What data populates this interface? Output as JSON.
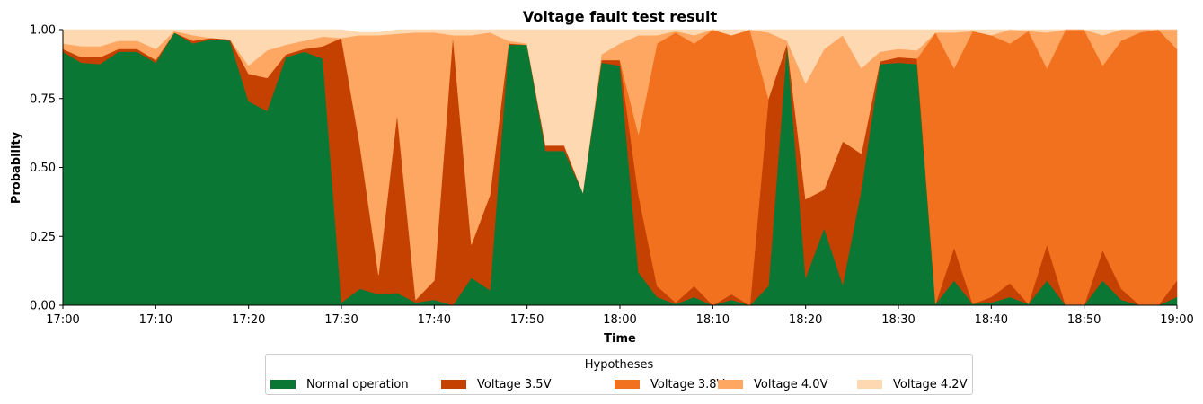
{
  "chart_data": {
    "type": "area",
    "stacked": true,
    "title": "Voltage fault test result",
    "xlabel": "Time",
    "ylabel": "Probability",
    "ylim": [
      0,
      1
    ],
    "xlim": [
      "17:00",
      "19:00"
    ],
    "grid": false,
    "x_ticks": [
      "17:00",
      "17:10",
      "17:20",
      "17:30",
      "17:40",
      "17:50",
      "18:00",
      "18:10",
      "18:20",
      "18:30",
      "18:40",
      "18:50",
      "19:00"
    ],
    "y_ticks": [
      "0.00",
      "0.25",
      "0.50",
      "0.75",
      "1.00"
    ],
    "legend": {
      "title": "Hypotheses",
      "placement": "bottom-center"
    },
    "x": [
      "17:00",
      "17:02",
      "17:04",
      "17:06",
      "17:08",
      "17:10",
      "17:12",
      "17:14",
      "17:16",
      "17:18",
      "17:20",
      "17:22",
      "17:24",
      "17:26",
      "17:28",
      "17:30",
      "17:32",
      "17:34",
      "17:36",
      "17:38",
      "17:40",
      "17:42",
      "17:44",
      "17:46",
      "17:48",
      "17:50",
      "17:52",
      "17:54",
      "17:56",
      "17:58",
      "18:00",
      "18:02",
      "18:04",
      "18:06",
      "18:08",
      "18:10",
      "18:12",
      "18:14",
      "18:16",
      "18:18",
      "18:20",
      "18:22",
      "18:24",
      "18:26",
      "18:28",
      "18:30",
      "18:32",
      "18:34",
      "18:36",
      "18:38",
      "18:40",
      "18:42",
      "18:44",
      "18:46",
      "18:48",
      "18:50",
      "18:52",
      "18:54",
      "18:56",
      "18:58",
      "19:00"
    ],
    "series": [
      {
        "name": "Normal operation",
        "color": "#0b7734",
        "values": [
          0.92,
          0.88,
          0.875,
          0.92,
          0.92,
          0.88,
          0.99,
          0.95,
          0.965,
          0.96,
          0.74,
          0.705,
          0.9,
          0.92,
          0.895,
          0.01,
          0.06,
          0.04,
          0.045,
          0.01,
          0.02,
          0.0,
          0.1,
          0.055,
          0.945,
          0.945,
          0.56,
          0.56,
          0.41,
          0.88,
          0.87,
          0.12,
          0.03,
          0.005,
          0.03,
          0.0,
          0.02,
          0.0,
          0.07,
          0.95,
          0.1,
          0.28,
          0.075,
          0.42,
          0.875,
          0.88,
          0.875,
          0.005,
          0.09,
          0.005,
          0.01,
          0.03,
          0.005,
          0.09,
          0.0,
          0.0,
          0.09,
          0.02,
          0.0,
          0.0,
          0.03
        ]
      },
      {
        "name": "Voltage 3.5V",
        "color": "#c44102",
        "values": [
          0.01,
          0.02,
          0.025,
          0.01,
          0.01,
          0.01,
          0.0,
          0.01,
          0.005,
          0.005,
          0.1,
          0.12,
          0.01,
          0.01,
          0.045,
          0.96,
          0.52,
          0.07,
          0.65,
          0.01,
          0.07,
          0.98,
          0.12,
          0.345,
          0.005,
          0.0,
          0.02,
          0.02,
          0.0,
          0.01,
          0.02,
          0.28,
          0.04,
          0.005,
          0.04,
          0.0,
          0.02,
          0.0,
          0.68,
          0.0,
          0.285,
          0.14,
          0.52,
          0.13,
          0.01,
          0.02,
          0.02,
          0.0,
          0.12,
          0.0,
          0.02,
          0.05,
          0.0,
          0.13,
          0.0,
          0.0,
          0.11,
          0.04,
          0.0,
          0.0,
          0.06
        ]
      },
      {
        "name": "Voltage 3.8V",
        "color": "#f1711e",
        "values": [
          0.0,
          0.0,
          0.0,
          0.0,
          0.0,
          0.0,
          0.0,
          0.0,
          0.0,
          0.0,
          0.0,
          0.0,
          0.0,
          0.0,
          0.0,
          0.0,
          0.0,
          0.0,
          0.0,
          0.0,
          0.0,
          0.0,
          0.0,
          0.0,
          0.0,
          0.0,
          0.0,
          0.0,
          0.0,
          0.0,
          0.0,
          0.22,
          0.88,
          0.98,
          0.88,
          1.0,
          0.94,
          1.0,
          0.0,
          0.0,
          0.0,
          0.0,
          0.0,
          0.0,
          0.0,
          0.0,
          0.0,
          0.985,
          0.65,
          0.99,
          0.95,
          0.87,
          0.99,
          0.64,
          1.0,
          1.0,
          0.67,
          0.9,
          0.99,
          1.0,
          0.84
        ]
      },
      {
        "name": "Voltage 4.0V",
        "color": "#fda762",
        "values": [
          0.02,
          0.04,
          0.04,
          0.03,
          0.03,
          0.04,
          0.005,
          0.02,
          0.0,
          0.0,
          0.03,
          0.1,
          0.035,
          0.03,
          0.035,
          0.0,
          0.4,
          0.87,
          0.29,
          0.97,
          0.9,
          0.0,
          0.76,
          0.59,
          0.01,
          0.005,
          0.0,
          0.0,
          0.0,
          0.02,
          0.06,
          0.36,
          0.03,
          0.005,
          0.03,
          0.0,
          0.0,
          0.0,
          0.24,
          0.01,
          0.42,
          0.51,
          0.385,
          0.31,
          0.035,
          0.03,
          0.03,
          0.0,
          0.13,
          0.0,
          0.0,
          0.05,
          0.0,
          0.13,
          0.0,
          0.0,
          0.11,
          0.04,
          0.01,
          0.0,
          0.07
        ]
      },
      {
        "name": "Voltage 4.2V",
        "color": "#fdd8b0",
        "values": [
          0.05,
          0.06,
          0.06,
          0.04,
          0.04,
          0.07,
          0.005,
          0.02,
          0.03,
          0.035,
          0.13,
          0.075,
          0.055,
          0.04,
          0.025,
          0.03,
          0.01,
          0.01,
          0.015,
          0.01,
          0.01,
          0.02,
          0.02,
          0.01,
          0.04,
          0.05,
          0.42,
          0.42,
          0.59,
          0.09,
          0.05,
          0.02,
          0.02,
          0.005,
          0.02,
          0.0,
          0.02,
          0.0,
          0.01,
          0.04,
          0.195,
          0.07,
          0.02,
          0.14,
          0.08,
          0.07,
          0.075,
          0.01,
          0.01,
          0.005,
          0.02,
          0.0,
          0.005,
          0.01,
          0.0,
          0.0,
          0.02,
          0.0,
          0.0,
          0.0,
          0.0
        ]
      }
    ]
  }
}
